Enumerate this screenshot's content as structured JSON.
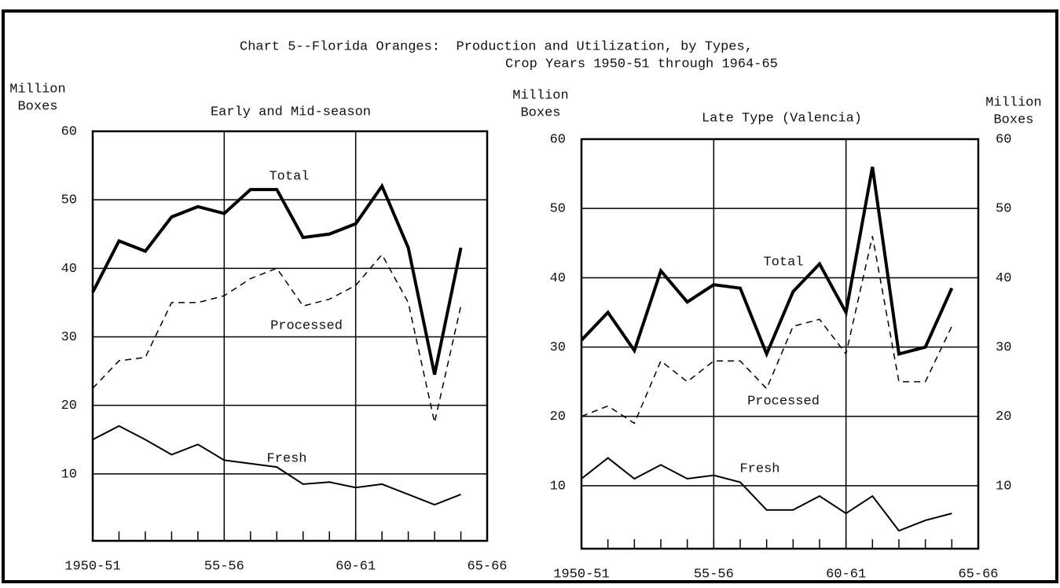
{
  "title": [
    "Chart 5--Florida Oranges:  Production and Utilization, by Types,",
    "Crop Years 1950-51 through 1964-65"
  ],
  "chart_data": [
    {
      "type": "line",
      "title": "Early and Mid-season",
      "ylabel": [
        "Million",
        "Boxes"
      ],
      "categories": [
        "1950-51",
        null,
        null,
        null,
        null,
        "55-56",
        null,
        null,
        null,
        null,
        "60-61",
        null,
        null,
        null,
        null,
        "65-66"
      ],
      "ylim": [
        0,
        60
      ],
      "yticks": [
        10,
        20,
        30,
        40,
        50,
        60
      ],
      "grid": true,
      "series": [
        {
          "name": "Total",
          "color": "#000000",
          "line_width": 4,
          "dashed": false,
          "values": [
            36.5,
            44,
            42.5,
            47.5,
            49,
            48,
            51.5,
            51.5,
            44.5,
            45,
            46.5,
            52,
            43,
            24.5,
            43,
            null
          ]
        },
        {
          "name": "Processed",
          "color": "#000000",
          "line_width": 1.5,
          "dashed": true,
          "values": [
            22.5,
            26.5,
            27,
            35,
            35,
            36,
            38.5,
            40,
            34.5,
            35.5,
            37.5,
            42,
            35,
            17.5,
            34.5,
            null
          ]
        },
        {
          "name": "Fresh",
          "color": "#000000",
          "line_width": 2,
          "dashed": false,
          "values": [
            15,
            17,
            15,
            12.8,
            14.3,
            12,
            11.5,
            11,
            8.5,
            8.8,
            8,
            8.5,
            7,
            5.5,
            7,
            null
          ]
        }
      ]
    },
    {
      "type": "line",
      "title": "Late Type (Valencia)",
      "ylabel": [
        "Million",
        "Boxes"
      ],
      "y2label": [
        "Million",
        "Boxes"
      ],
      "categories": [
        "1950-51",
        null,
        null,
        null,
        null,
        "55-56",
        null,
        null,
        null,
        null,
        "60-61",
        null,
        null,
        null,
        null,
        "65-66"
      ],
      "ylim": [
        0,
        60
      ],
      "yticks": [
        10,
        20,
        30,
        40,
        50,
        60
      ],
      "y2lim": [
        0,
        60
      ],
      "y2ticks": [
        10,
        20,
        30,
        40,
        50,
        60
      ],
      "grid": true,
      "series": [
        {
          "name": "Total",
          "color": "#000000",
          "line_width": 4,
          "dashed": false,
          "values": [
            31,
            35,
            29.5,
            41,
            36.5,
            39,
            38.5,
            29,
            38,
            42,
            35,
            56,
            29,
            30,
            38.5,
            null
          ]
        },
        {
          "name": "Processed",
          "color": "#000000",
          "line_width": 1.5,
          "dashed": true,
          "values": [
            20,
            21.5,
            19,
            28,
            25,
            28,
            28,
            24,
            33,
            34,
            29,
            46,
            25,
            25,
            33,
            null
          ]
        },
        {
          "name": "Fresh",
          "color": "#000000",
          "line_width": 2,
          "dashed": false,
          "values": [
            11,
            14,
            11,
            13,
            11,
            11.5,
            10.5,
            6.5,
            6.5,
            8.5,
            6,
            8.5,
            3.5,
            5,
            6,
            null
          ]
        }
      ]
    }
  ]
}
